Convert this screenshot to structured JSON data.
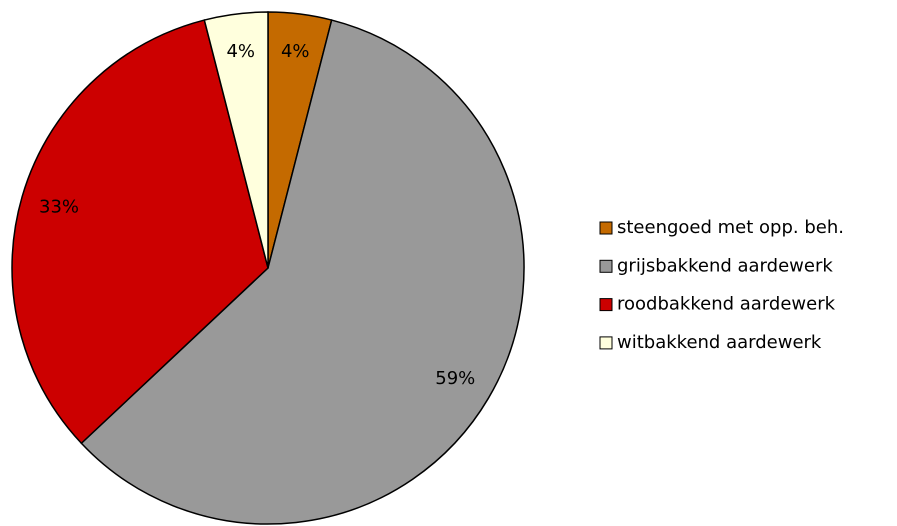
{
  "chart_data": {
    "type": "pie",
    "categories": [
      "steengoed met opp. beh.",
      "grijsbakkend aardewerk",
      "roodbakkend aardewerk",
      "witbakkend aardewerk"
    ],
    "values": [
      4,
      59,
      33,
      4
    ],
    "value_labels": [
      "4%",
      "59%",
      "33%",
      "4%"
    ],
    "colors": [
      "#c46a00",
      "#999999",
      "#cc0000",
      "#ffffdd"
    ],
    "legend": "right"
  }
}
